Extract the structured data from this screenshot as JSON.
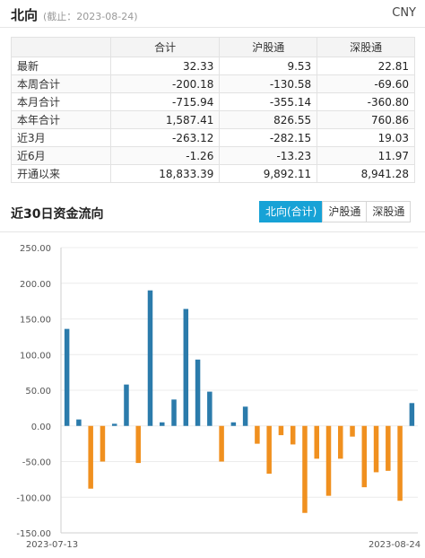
{
  "header": {
    "title": "北向",
    "date_note": "(截止：2023-08-24)",
    "currency": "CNY"
  },
  "table": {
    "columns": [
      "",
      "合计",
      "沪股通",
      "深股通"
    ],
    "rows": [
      [
        "最新",
        "32.33",
        "9.53",
        "22.81"
      ],
      [
        "本周合计",
        "-200.18",
        "-130.58",
        "-69.60"
      ],
      [
        "本月合计",
        "-715.94",
        "-355.14",
        "-360.80"
      ],
      [
        "本年合计",
        "1,587.41",
        "826.55",
        "760.86"
      ],
      [
        "近3月",
        "-263.12",
        "-282.15",
        "19.03"
      ],
      [
        "近6月",
        "-1.26",
        "-13.23",
        "11.97"
      ],
      [
        "开通以来",
        "18,833.39",
        "9,892.11",
        "8,941.28"
      ]
    ]
  },
  "section": {
    "title": "近30日资金流向",
    "tabs": [
      {
        "label": "北向(合计)",
        "active": true
      },
      {
        "label": "沪股通",
        "active": false
      },
      {
        "label": "深股通",
        "active": false
      }
    ]
  },
  "colors": {
    "positive": "#2b7bab",
    "negative": "#f0901f",
    "accent": "#17a2d6"
  },
  "chart_data": {
    "type": "bar",
    "ylim": [
      -150,
      250
    ],
    "yticks": [
      "250.00",
      "200.00",
      "150.00",
      "100.00",
      "50.00",
      "0.00",
      "-50.00",
      "-100.00",
      "-150.00"
    ],
    "x_labels": [
      "2023-07-13",
      "2023-08-24"
    ],
    "values": [
      136,
      9,
      -88,
      -50,
      3,
      58,
      -52,
      190,
      5,
      37,
      164,
      93,
      48,
      -50,
      5,
      27,
      -25,
      -67,
      -13,
      -26,
      -122,
      -46,
      -98,
      -46,
      -15,
      -86,
      -65,
      -63,
      -105,
      32
    ]
  }
}
